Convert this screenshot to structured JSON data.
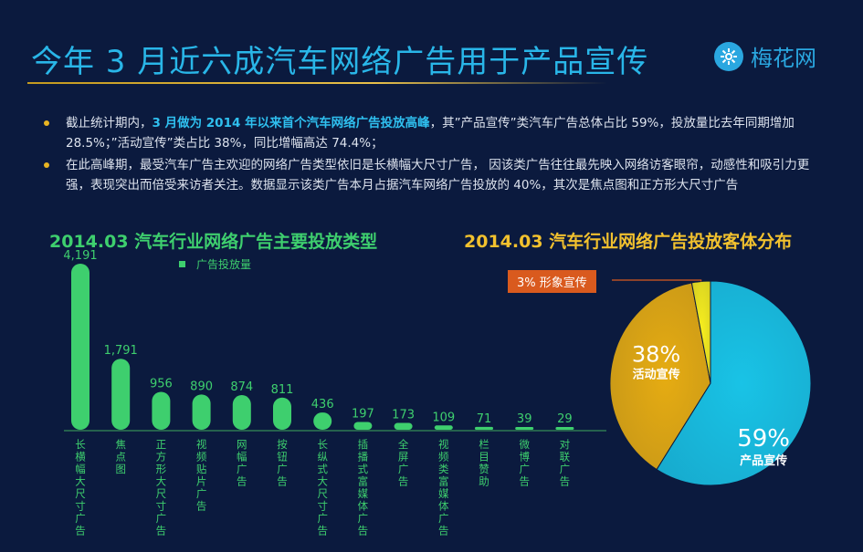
{
  "header": {
    "title": "今年 3 月近六成汽车网络广告用于产品宣传",
    "logo_text": "梅花网",
    "logo_icon": "plum-blossom-icon"
  },
  "bullets": [
    {
      "parts": [
        {
          "text": "截止统计期内，",
          "highlight": false
        },
        {
          "text": "3 月做为 2014 年以来首个汽车网络广告投放高峰",
          "highlight": true
        },
        {
          "text": "，其”产品宣传”类汽车广告总体占比 59%，投放量比去年同期增加 28.5%；”活动宣传”类占比 38%，同比增幅高达 74.4%；",
          "highlight": false
        }
      ]
    },
    {
      "parts": [
        {
          "text": "在此高峰期，最受汽车广告主欢迎的网络广告类型依旧是长横幅大尺寸广告， 因该类广告往往最先映入网络访客眼帘，动感性和吸引力更强，表现突出而倍受来访者关注。数据显示该类广告本月占据汽车网络广告投放的 40%，其次是焦点图和正方形大尺寸广告",
          "highlight": false
        }
      ]
    }
  ],
  "colors": {
    "background": "#0b1a3e",
    "title": "#29b6e8",
    "bar": "#3ecf6e",
    "pie_product": "#19c3e6",
    "pie_activity": "#e6ac12",
    "pie_image": "#f7ee1e",
    "callout": "#d95a1e"
  },
  "chart_data": [
    {
      "type": "bar",
      "title": "2014.03 汽车行业网络广告主要投放类型",
      "legend": "top",
      "series": [
        {
          "name": "广告投放量",
          "values": [
            4191,
            1791,
            956,
            890,
            874,
            811,
            436,
            197,
            173,
            109,
            71,
            39,
            29
          ]
        }
      ],
      "categories": [
        "长横幅大尺寸广告",
        "焦点图",
        "正方形大尺寸广告",
        "视频贴片广告",
        "网幅广告",
        "按钮广告",
        "长纵式大尺寸广告",
        "插播式富媒体广告",
        "全屏广告",
        "视频类富媒体广告",
        "栏目赞助",
        "微博广告",
        "对联广告"
      ],
      "data_labels": [
        "4,191",
        "1,791",
        "956",
        "890",
        "874",
        "811",
        "436",
        "197",
        "173",
        "109",
        "71",
        "39",
        "29"
      ],
      "ylim": [
        0,
        4191
      ]
    },
    {
      "type": "pie",
      "title": "2014.03 汽车行业网络广告投放客体分布",
      "slices": [
        {
          "label": "产品宣传",
          "value": 59,
          "value_label": "59%",
          "color": "#19c3e6"
        },
        {
          "label": "活动宣传",
          "value": 38,
          "value_label": "38%",
          "color": "#e6ac12"
        },
        {
          "label": "形象宣传",
          "value": 3,
          "value_label": "3% 形象宣传",
          "color": "#f7ee1e"
        }
      ]
    }
  ]
}
